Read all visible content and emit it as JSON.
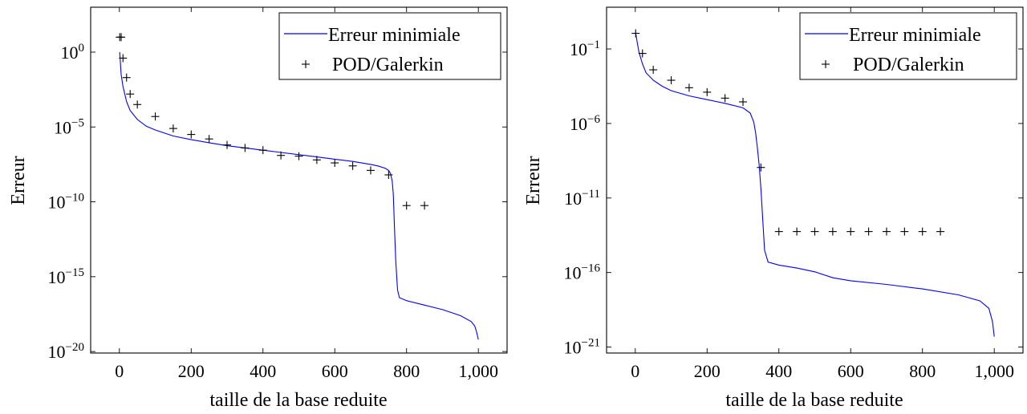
{
  "chart_data": [
    {
      "type": "line",
      "xlabel": "taille de la base reduite",
      "ylabel": "Erreur",
      "yscale": "log",
      "xlim": [
        -80,
        1080
      ],
      "ylim_exponent": [
        -20.1,
        3.0
      ],
      "x_ticks": [
        {
          "value": 0,
          "label": "0"
        },
        {
          "value": 200,
          "label": "200"
        },
        {
          "value": 400,
          "label": "400"
        },
        {
          "value": 600,
          "label": "600"
        },
        {
          "value": 800,
          "label": "800"
        },
        {
          "value": 1000,
          "label": "1,000"
        }
      ],
      "y_ticks": [
        {
          "exponent": 0,
          "base": "10",
          "exp_label": "0"
        },
        {
          "exponent": -5,
          "base": "10",
          "exp_label": "−5"
        },
        {
          "exponent": -10,
          "base": "10",
          "exp_label": "−10"
        },
        {
          "exponent": -15,
          "base": "10",
          "exp_label": "−15"
        },
        {
          "exponent": -20,
          "base": "10",
          "exp_label": "−20"
        }
      ],
      "legend": {
        "position": "top-right",
        "entries": [
          "Erreur minimiale",
          "POD/Galerkin"
        ]
      },
      "series": [
        {
          "name": "Erreur minimiale",
          "style": "line",
          "color": "#0000ff",
          "x": [
            1,
            5,
            10,
            20,
            30,
            50,
            75,
            100,
            150,
            200,
            250,
            300,
            350,
            400,
            450,
            500,
            550,
            600,
            650,
            700,
            720,
            740,
            750,
            755,
            760,
            763,
            766,
            770,
            775,
            780,
            800,
            850,
            900,
            950,
            980,
            990,
            995,
            1000
          ],
          "log10_y": [
            0,
            -1.5,
            -2.3,
            -3.3,
            -3.9,
            -4.5,
            -4.95,
            -5.2,
            -5.6,
            -5.85,
            -6.05,
            -6.25,
            -6.4,
            -6.55,
            -6.7,
            -6.85,
            -7.0,
            -7.15,
            -7.3,
            -7.5,
            -7.6,
            -7.75,
            -7.9,
            -8.1,
            -8.6,
            -9.5,
            -11.5,
            -14.0,
            -15.9,
            -16.4,
            -16.6,
            -16.9,
            -17.2,
            -17.6,
            -18.0,
            -18.3,
            -18.7,
            -19.2
          ]
        },
        {
          "name": "POD/Galerkin",
          "style": "plus",
          "color": "#000000",
          "x": [
            1,
            5,
            10,
            20,
            30,
            50,
            100,
            150,
            200,
            250,
            300,
            350,
            400,
            450,
            500,
            550,
            600,
            650,
            700,
            750,
            800,
            850
          ],
          "log10_y": [
            1.0,
            1.0,
            -0.4,
            -1.7,
            -2.8,
            -3.5,
            -4.3,
            -5.1,
            -5.5,
            -5.8,
            -6.2,
            -6.4,
            -6.55,
            -6.9,
            -6.95,
            -7.2,
            -7.4,
            -7.6,
            -7.9,
            -8.2,
            -10.25,
            -10.25
          ]
        }
      ]
    },
    {
      "type": "line",
      "xlabel": "taille de la base reduite",
      "ylabel": "Erreur",
      "yscale": "log",
      "xlim": [
        -80,
        1080
      ],
      "ylim_exponent": [
        -21.4,
        1.8
      ],
      "x_ticks": [
        {
          "value": 0,
          "label": "0"
        },
        {
          "value": 200,
          "label": "200"
        },
        {
          "value": 400,
          "label": "400"
        },
        {
          "value": 600,
          "label": "600"
        },
        {
          "value": 800,
          "label": "800"
        },
        {
          "value": 1000,
          "label": "1,000"
        }
      ],
      "y_ticks": [
        {
          "exponent": -1,
          "base": "10",
          "exp_label": "−1"
        },
        {
          "exponent": -6,
          "base": "10",
          "exp_label": "−6"
        },
        {
          "exponent": -11,
          "base": "10",
          "exp_label": "−11"
        },
        {
          "exponent": -16,
          "base": "10",
          "exp_label": "−16"
        },
        {
          "exponent": -21,
          "base": "10",
          "exp_label": "−21"
        }
      ],
      "legend": {
        "position": "top-right",
        "entries": [
          "Erreur minimiale",
          "POD/Galerkin"
        ]
      },
      "series": [
        {
          "name": "Erreur minimiale",
          "style": "line",
          "color": "#0000ff",
          "x": [
            1,
            5,
            10,
            20,
            30,
            50,
            75,
            100,
            150,
            200,
            250,
            300,
            320,
            330,
            335,
            340,
            345,
            350,
            355,
            360,
            370,
            400,
            450,
            500,
            550,
            600,
            700,
            800,
            900,
            960,
            985,
            995,
            1000
          ],
          "log10_y": [
            0.1,
            -0.5,
            -1.2,
            -2.0,
            -2.6,
            -3.1,
            -3.5,
            -3.8,
            -4.15,
            -4.4,
            -4.65,
            -4.95,
            -5.3,
            -5.9,
            -6.6,
            -7.6,
            -8.8,
            -10.4,
            -12.4,
            -14.5,
            -15.3,
            -15.5,
            -15.7,
            -15.95,
            -16.35,
            -16.55,
            -16.8,
            -17.1,
            -17.5,
            -17.9,
            -18.4,
            -19.3,
            -20.3
          ]
        },
        {
          "name": "POD/Galerkin",
          "style": "plus",
          "color": "#000000",
          "x": [
            1,
            20,
            50,
            100,
            150,
            200,
            250,
            300,
            350,
            400,
            450,
            500,
            550,
            600,
            650,
            700,
            750,
            800,
            850
          ],
          "log10_y": [
            0.05,
            -1.3,
            -2.4,
            -3.1,
            -3.6,
            -3.9,
            -4.3,
            -4.55,
            -8.95,
            -13.25,
            -13.25,
            -13.25,
            -13.25,
            -13.25,
            -13.25,
            -13.25,
            -13.25,
            -13.25,
            -13.25
          ]
        }
      ]
    }
  ]
}
